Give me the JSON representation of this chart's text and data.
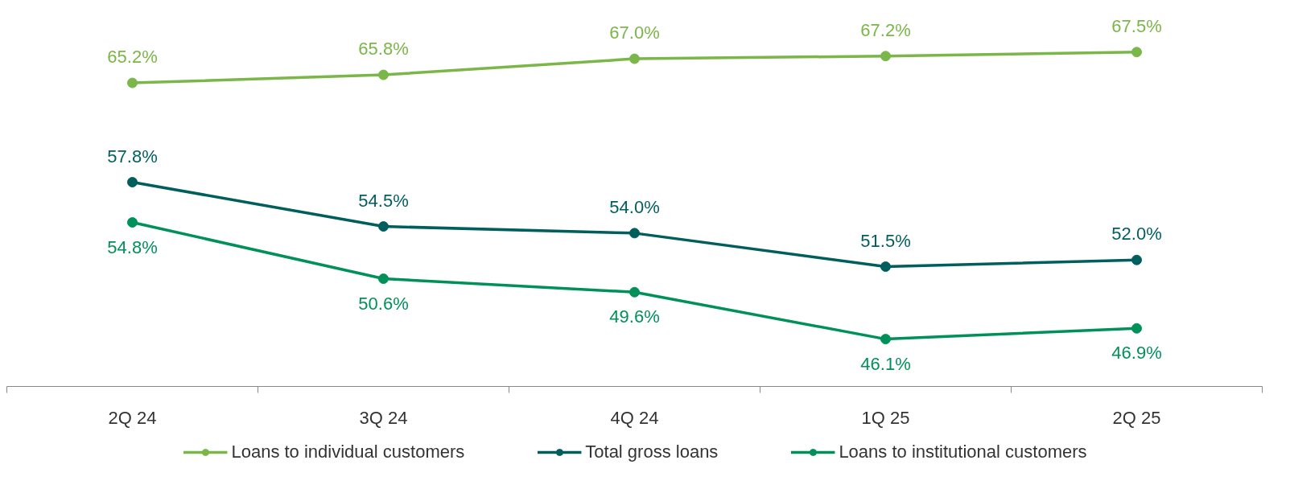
{
  "chart_data": {
    "type": "line",
    "categories": [
      "2Q 24",
      "3Q 24",
      "4Q 24",
      "1Q 25",
      "2Q 25"
    ],
    "series": [
      {
        "name": "Loans to individual customers",
        "color": "#7ab648",
        "values": [
          65.2,
          65.8,
          67.0,
          67.2,
          67.5
        ],
        "value_labels": [
          "65.2%",
          "65.8%",
          "67.0%",
          "67.2%",
          "67.5%"
        ]
      },
      {
        "name": "Total gross loans",
        "color": "#005e5d",
        "values": [
          57.8,
          54.5,
          54.0,
          51.5,
          52.0
        ],
        "value_labels": [
          "57.8%",
          "54.5%",
          "54.0%",
          "51.5%",
          "52.0%"
        ]
      },
      {
        "name": "Loans to institutional customers",
        "color": "#00915a",
        "values": [
          54.8,
          50.6,
          49.6,
          46.1,
          46.9
        ],
        "value_labels": [
          "54.8%",
          "50.6%",
          "49.6%",
          "46.1%",
          "46.9%"
        ]
      }
    ],
    "marker": "circle",
    "line_style": "solid",
    "grid": false,
    "legend": "bottom"
  }
}
